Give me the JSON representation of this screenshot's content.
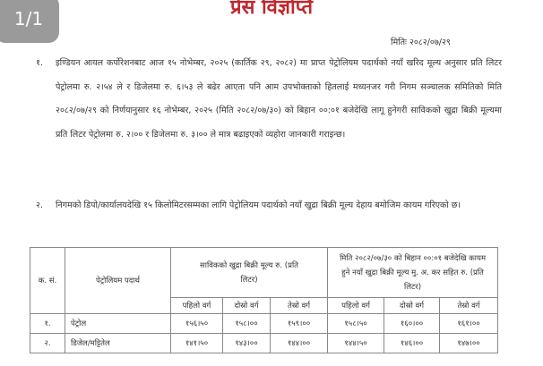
{
  "badge": "1/1",
  "title": "प्रेस विज्ञप्ति",
  "date": "मितिः २०८२/०७/२९",
  "paragraphs": [
    {
      "num": "१.",
      "text": "इण्डियन आयल कर्पोरेशनबाट आज १५ नोभेम्बर, २०२५ (कार्तिक २९, २०८२) मा प्राप्त पेट्रोलियम पदार्थको नयाँ खरिद मूल्य अनुसार प्रति लिटर पेट्रोलमा रु. २।५४ ले र डिजेलमा रु. ६।५३ ले बढेर आएता पनि आम उपभोक्ताको हितलाई मध्यनजर गरी निगम सञ्चालक समितिको मिति २०८२/०७/२९ को निर्णयानुसार १६ नोभेम्बर, २०२५ (मिति २०८२/०७/३०) को बिहान ००:०१ बजेदेखि लागू हुनेगरी साविकको खुद्रा बिक्री मूल्यमा प्रति लिटर पेट्रोलमा रु. २।०० र डिजेलमा रु. ३।०० ले मात्र बढाइएको व्यहोरा जानकारी गराइन्छ।"
    },
    {
      "num": "२.",
      "text": "निगमको डिपो/कार्यालयदेखि १५ किलोमिटरसम्मका लागि पेट्रोलियम पदार्थको नयाँ खुद्रा बिक्री मूल्य देहाय बमोजिम कायम गरिएको छ।"
    }
  ],
  "table": {
    "headers": {
      "sn": "क. सं.",
      "product": "पेट्रोलियम पदार्थ",
      "old": "साविकको खुद्रा बिक्री मूल्य रु. (प्रति लिटर)",
      "new": "मिति २०८२/०७/३० को बिहान ००:०१ बजेदेखि कायम हुने नयाँ खुद्रा बिक्री मूल्य मु. अ. कर सहित रु. (प्रति लिटर)"
    },
    "subheaders": [
      "पहिलो वर्ग",
      "दोस्रो वर्ग",
      "तेस्रो वर्ग",
      "पहिलो वर्ग",
      "दोस्रो वर्ग",
      "तेस्रो वर्ग"
    ],
    "rows": [
      {
        "sn": "१.",
        "product": "पेट्रोल",
        "values": [
          "१५६।५०",
          "१५८।००",
          "१५९।००",
          "१५८।५०",
          "१६०।००",
          "१६१।००"
        ]
      },
      {
        "sn": "२.",
        "product": "डिजेल/मट्टितेल",
        "values": [
          "१४१।५०",
          "१४३।००",
          "१४४।००",
          "१४४।५०",
          "१४६।००",
          "१४७।००"
        ]
      }
    ]
  }
}
